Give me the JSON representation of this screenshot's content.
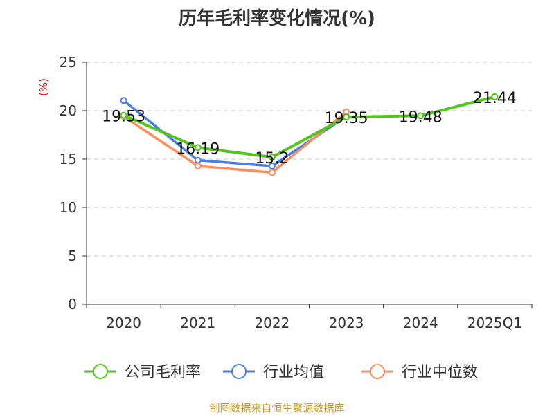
{
  "chart_data": {
    "type": "line",
    "title": "历年毛利率变化情况(%)",
    "ylabel": "(%)",
    "xlabel": "",
    "categories": [
      "2020",
      "2021",
      "2022",
      "2023",
      "2024",
      "2025Q1"
    ],
    "ylim": [
      0,
      25
    ],
    "yticks": [
      0,
      5,
      10,
      15,
      20,
      25
    ],
    "grid": true,
    "legend_position": "bottom",
    "series": [
      {
        "name": "公司毛利率",
        "color": "#52c41a",
        "values": [
          19.53,
          16.19,
          15.2,
          19.35,
          19.48,
          21.44
        ],
        "labels": [
          "19.53",
          "16.19",
          "15.2",
          "19.35",
          "19.48",
          "21.44"
        ]
      },
      {
        "name": "行业均值",
        "color": "#4a7fe0",
        "values": [
          21.05,
          14.88,
          14.29,
          19.4,
          null,
          null
        ]
      },
      {
        "name": "行业中位数",
        "color": "#ff8c5a",
        "values": [
          19.4,
          14.29,
          13.62,
          19.88,
          null,
          null
        ]
      }
    ]
  },
  "source": "制图数据来自恒生聚源数据库"
}
